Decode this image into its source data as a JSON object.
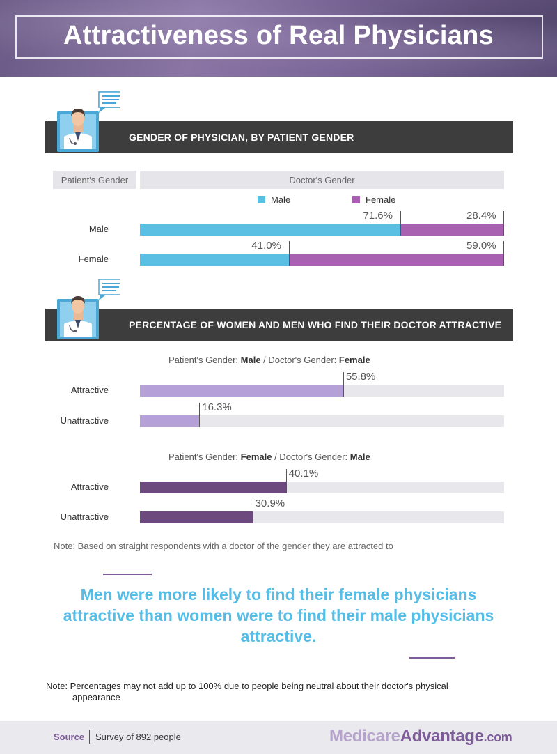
{
  "title": "Attractiveness of Real Physicians",
  "colors": {
    "male": "#5bbfe3",
    "female": "#a861b0",
    "light_purple": "#b5a1d7",
    "dark_purple": "#6c4a7e",
    "track": "#e8e8ec",
    "quote": "#55bde6",
    "section_bar": "#3d3d3d"
  },
  "section1": {
    "heading": "GENDER OF PHYSICIAN, BY PATIENT GENDER",
    "patient_header": "Patient's Gender",
    "doctor_header": "Doctor's Gender",
    "legend": [
      {
        "label": "Male",
        "color": "#5bbfe3"
      },
      {
        "label": "Female",
        "color": "#a861b0"
      }
    ]
  },
  "section2": {
    "heading": "PERCENTAGE OF WOMEN AND MEN WHO FIND THEIR DOCTOR ATTRACTIVE",
    "group1": {
      "prefix": "Patient's Gender: ",
      "pg": "Male",
      "mid": " / Doctor's Gender: ",
      "dg": "Female"
    },
    "group2": {
      "prefix": "Patient's Gender: ",
      "pg": "Female",
      "mid": " / Doctor's Gender: ",
      "dg": "Male"
    },
    "note": "Note: Based on straight respondents with a doctor of the gender they are attracted to"
  },
  "chart_data": [
    {
      "type": "bar",
      "stacked": true,
      "orientation": "horizontal",
      "title": "GENDER OF PHYSICIAN, BY PATIENT GENDER",
      "categories": [
        "Male",
        "Female"
      ],
      "series": [
        {
          "name": "Male",
          "values": [
            71.6,
            41.0
          ],
          "color": "#5bbfe3"
        },
        {
          "name": "Female",
          "values": [
            28.4,
            59.0
          ],
          "color": "#a861b0"
        }
      ],
      "labels": [
        [
          "71.6%",
          "41.0%"
        ],
        [
          "28.4%",
          "59.0%"
        ]
      ],
      "xlim": [
        0,
        100
      ]
    },
    {
      "type": "bar",
      "orientation": "horizontal",
      "title": "Patient's Gender: Male / Doctor's Gender: Female",
      "categories": [
        "Attractive",
        "Unattractive"
      ],
      "values": [
        55.8,
        16.3
      ],
      "labels": [
        "55.8%",
        "16.3%"
      ],
      "color": "#b5a1d7",
      "xlim": [
        0,
        100
      ]
    },
    {
      "type": "bar",
      "orientation": "horizontal",
      "title": "Patient's Gender: Female / Doctor's Gender: Male",
      "categories": [
        "Attractive",
        "Unattractive"
      ],
      "values": [
        40.1,
        30.9
      ],
      "labels": [
        "40.1%",
        "30.9%"
      ],
      "color": "#6c4a7e",
      "xlim": [
        0,
        100
      ]
    }
  ],
  "quote": "Men were more likely to find their female physicians attractive than women were to find their male physicians attractive.",
  "note2": {
    "line1": "Note: Percentages may not add up to 100% due to people being neutral about their doctor's physical",
    "line2": "appearance"
  },
  "footer": {
    "source_label": "Source",
    "source_text": "Survey of 892 people",
    "brand_part1": "Medicare",
    "brand_part2": "Advantage",
    "brand_part3": ".com"
  }
}
